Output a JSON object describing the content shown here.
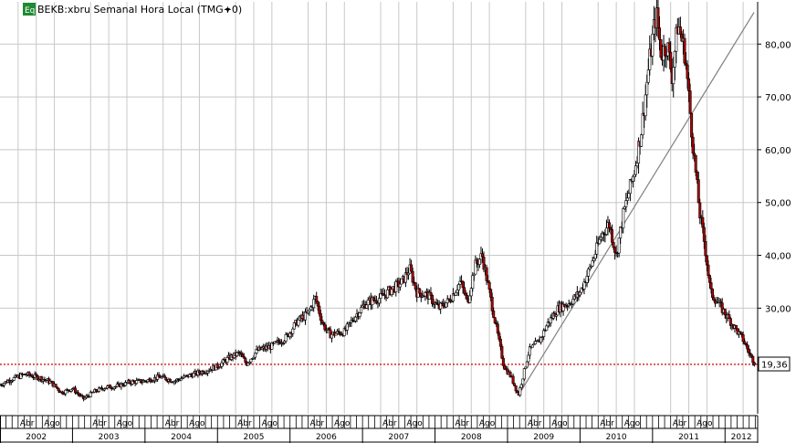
{
  "header": {
    "badge": "Eq",
    "title": "BEKB:xbru Semanal Hora Local (TMG+0)",
    "menu_arrow": "▾"
  },
  "colors": {
    "up": "#ffffff",
    "down": "#b00000",
    "wick": "#000000",
    "grid": "#c8c8c8",
    "hline": "#cc0000",
    "badge": "#1e8a32",
    "trend": "#808080"
  },
  "last_price_label": "19,36",
  "chart_data": {
    "type": "candlestick",
    "title": "BEKB:xbru Semanal Hora Local (TMG+0)",
    "y_range": [
      10,
      88
    ],
    "y_ticks": [
      {
        "value": 30,
        "label": "30,00"
      },
      {
        "value": 40,
        "label": "40,00"
      },
      {
        "value": 50,
        "label": "50,00"
      },
      {
        "value": 60,
        "label": "60,00"
      },
      {
        "value": 70,
        "label": "70,00"
      },
      {
        "value": 80,
        "label": "80,00"
      }
    ],
    "x_start": 2002.0,
    "x_end": 2012.45,
    "years": [
      "2002",
      "2003",
      "2004",
      "2005",
      "2006",
      "2007",
      "2008",
      "2009",
      "2010",
      "2011",
      "2012"
    ],
    "month_labels": [
      "Abr",
      "Ago"
    ],
    "reference_line": {
      "value": 19.36,
      "label": "19,36"
    },
    "trendline": {
      "from": {
        "x": 2009.15,
        "y": 13.5
      },
      "to": {
        "x": 2012.4,
        "y": 86
      }
    },
    "anchors": [
      [
        2002.0,
        15.5
      ],
      [
        2002.15,
        16.5
      ],
      [
        2002.35,
        17.5
      ],
      [
        2002.55,
        16.8
      ],
      [
        2002.7,
        16.0
      ],
      [
        2002.85,
        14.0
      ],
      [
        2003.0,
        14.8
      ],
      [
        2003.15,
        12.8
      ],
      [
        2003.3,
        14.2
      ],
      [
        2003.45,
        15.0
      ],
      [
        2003.6,
        15.2
      ],
      [
        2003.8,
        16.0
      ],
      [
        2004.0,
        16.2
      ],
      [
        2004.2,
        17.0
      ],
      [
        2004.4,
        16.2
      ],
      [
        2004.6,
        17.2
      ],
      [
        2004.8,
        18.0
      ],
      [
        2005.0,
        19.0
      ],
      [
        2005.15,
        20.5
      ],
      [
        2005.3,
        21.5
      ],
      [
        2005.4,
        19.5
      ],
      [
        2005.55,
        22.0
      ],
      [
        2005.75,
        22.8
      ],
      [
        2005.95,
        24.5
      ],
      [
        2006.1,
        27.5
      ],
      [
        2006.25,
        29.0
      ],
      [
        2006.35,
        32.0
      ],
      [
        2006.45,
        27.0
      ],
      [
        2006.55,
        25.0
      ],
      [
        2006.75,
        25.5
      ],
      [
        2006.9,
        28.5
      ],
      [
        2007.05,
        31.0
      ],
      [
        2007.25,
        32.0
      ],
      [
        2007.4,
        33.5
      ],
      [
        2007.55,
        35.0
      ],
      [
        2007.65,
        37.5
      ],
      [
        2007.75,
        33.0
      ],
      [
        2007.9,
        32.5
      ],
      [
        2008.05,
        30.0
      ],
      [
        2008.2,
        31.5
      ],
      [
        2008.35,
        35.0
      ],
      [
        2008.45,
        31.0
      ],
      [
        2008.55,
        38.0
      ],
      [
        2008.65,
        40.0
      ],
      [
        2008.75,
        33.0
      ],
      [
        2008.85,
        26.0
      ],
      [
        2008.95,
        19.0
      ],
      [
        2009.05,
        17.0
      ],
      [
        2009.15,
        13.5
      ],
      [
        2009.3,
        22.0
      ],
      [
        2009.45,
        24.0
      ],
      [
        2009.55,
        27.0
      ],
      [
        2009.7,
        30.0
      ],
      [
        2009.85,
        31.0
      ],
      [
        2010.0,
        33.0
      ],
      [
        2010.15,
        38.0
      ],
      [
        2010.3,
        44.0
      ],
      [
        2010.4,
        46.0
      ],
      [
        2010.5,
        40.0
      ],
      [
        2010.6,
        48.0
      ],
      [
        2010.75,
        56.0
      ],
      [
        2010.85,
        64.0
      ],
      [
        2010.95,
        76.0
      ],
      [
        2011.05,
        86.0
      ],
      [
        2011.12,
        78.0
      ],
      [
        2011.2,
        80.0
      ],
      [
        2011.27,
        74.0
      ],
      [
        2011.35,
        84.0
      ],
      [
        2011.45,
        78.0
      ],
      [
        2011.55,
        62.0
      ],
      [
        2011.65,
        48.0
      ],
      [
        2011.72,
        42.0
      ],
      [
        2011.8,
        33.0
      ],
      [
        2011.95,
        30.0
      ],
      [
        2012.05,
        28.0
      ],
      [
        2012.15,
        26.0
      ],
      [
        2012.25,
        24.0
      ],
      [
        2012.35,
        21.0
      ],
      [
        2012.42,
        19.4
      ]
    ]
  }
}
